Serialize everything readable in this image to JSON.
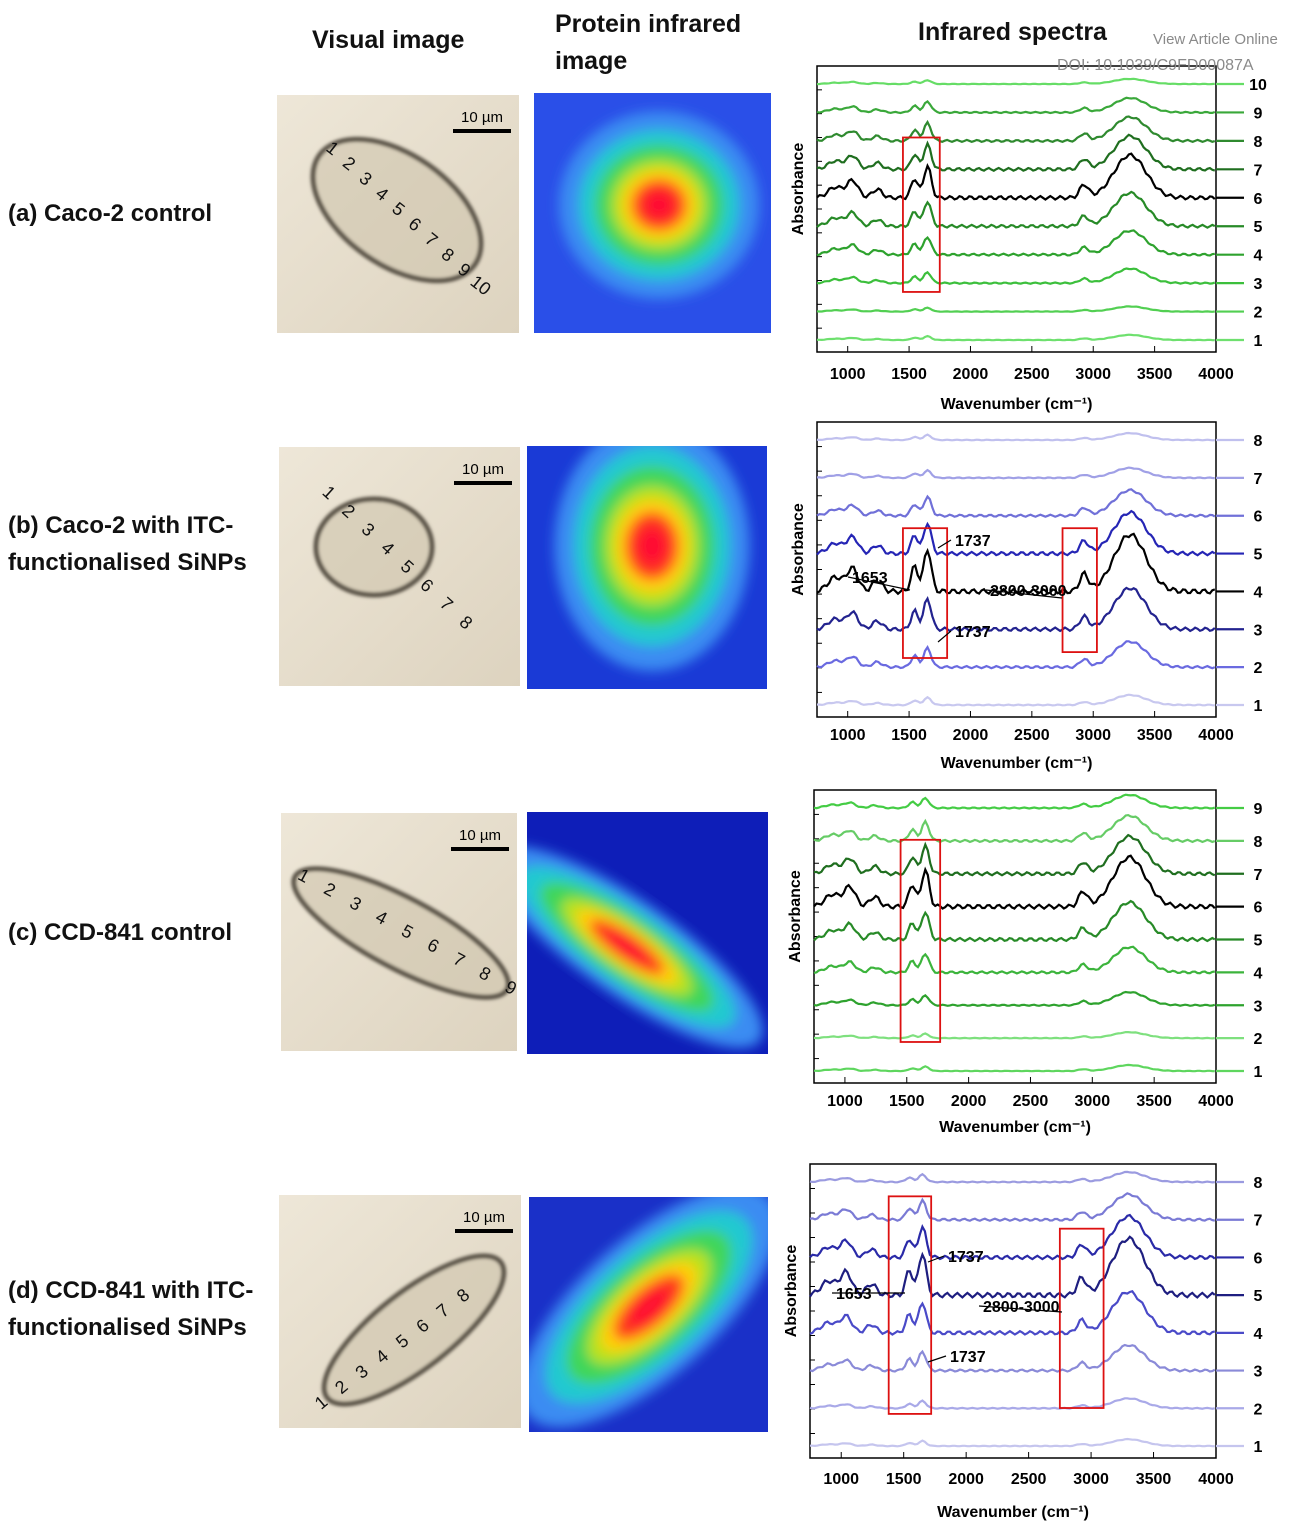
{
  "header": {
    "visual": "Visual image",
    "protein": "Protein infrared image",
    "spectra": "Infrared spectra"
  },
  "watermark": {
    "line1": "View Article Online",
    "line2": "DOI: 10.1039/C9FD00087A"
  },
  "rows": [
    {
      "label": "(a) Caco-2 control",
      "scale_bar": "10 µm",
      "cell_numbers": [
        "1",
        "2",
        "3",
        "4",
        "5",
        "6",
        "7",
        "8",
        "9",
        "10"
      ],
      "spectra": {
        "xlim": [
          750,
          4000
        ],
        "xticks": [
          1000,
          1500,
          2000,
          2500,
          3000,
          3500,
          4000
        ],
        "x_label": "Wavenumber (cm⁻¹)",
        "y_label": "Absorbance",
        "curves": [
          {
            "label": "1",
            "color": "#6ee06e"
          },
          {
            "label": "2",
            "color": "#52cf52"
          },
          {
            "label": "3",
            "color": "#3cbf3c"
          },
          {
            "label": "4",
            "color": "#2ea22e"
          },
          {
            "label": "5",
            "color": "#278a27"
          },
          {
            "label": "6",
            "color": "#000000"
          },
          {
            "label": "7",
            "color": "#1f6e1f"
          },
          {
            "label": "8",
            "color": "#2f8a2f"
          },
          {
            "label": "9",
            "color": "#3aa83a"
          },
          {
            "label": "10",
            "color": "#66dd66"
          }
        ],
        "annotations": []
      }
    },
    {
      "label": "(b) Caco-2 with ITC-functionalised SiNPs",
      "scale_bar": "10 µm",
      "cell_numbers": [
        "1",
        "2",
        "3",
        "4",
        "5",
        "6",
        "7",
        "8"
      ],
      "spectra": {
        "xlim": [
          750,
          4000
        ],
        "xticks": [
          1000,
          1500,
          2000,
          2500,
          3000,
          3500,
          4000
        ],
        "x_label": "Wavenumber (cm⁻¹)",
        "y_label": "Absorbance",
        "curves": [
          {
            "label": "1",
            "color": "#c8c8ef"
          },
          {
            "label": "2",
            "color": "#6a6ae0"
          },
          {
            "label": "3",
            "color": "#23238f"
          },
          {
            "label": "4",
            "color": "#000000"
          },
          {
            "label": "5",
            "color": "#2525b5"
          },
          {
            "label": "6",
            "color": "#7070d8"
          },
          {
            "label": "7",
            "color": "#a0a0e6"
          },
          {
            "label": "8",
            "color": "#c0c0ee"
          }
        ],
        "annotations": [
          "1737",
          "1653",
          "2800-3000",
          "1737"
        ]
      }
    },
    {
      "label": "(c) CCD-841 control",
      "scale_bar": "10 µm",
      "cell_numbers": [
        "1",
        "2",
        "3",
        "4",
        "5",
        "6",
        "7",
        "8",
        "9"
      ],
      "spectra": {
        "xlim": [
          750,
          4000
        ],
        "xticks": [
          1000,
          1500,
          2000,
          2500,
          3000,
          3500,
          4000
        ],
        "x_label": "Wavenumber (cm⁻¹)",
        "y_label": "Absorbance",
        "curves": [
          {
            "label": "1",
            "color": "#5ed65e"
          },
          {
            "label": "2",
            "color": "#7ee07e"
          },
          {
            "label": "3",
            "color": "#2ea22e"
          },
          {
            "label": "4",
            "color": "#3cb43c"
          },
          {
            "label": "5",
            "color": "#278a27"
          },
          {
            "label": "6",
            "color": "#000000"
          },
          {
            "label": "7",
            "color": "#1f6e1f"
          },
          {
            "label": "8",
            "color": "#66cc66"
          },
          {
            "label": "9",
            "color": "#44cc44"
          }
        ],
        "annotations": []
      }
    },
    {
      "label": "(d) CCD-841 with ITC-functionalised SiNPs",
      "scale_bar": "10 µm",
      "cell_numbers": [
        "1",
        "2",
        "3",
        "4",
        "5",
        "6",
        "7",
        "8"
      ],
      "spectra": {
        "xlim": [
          750,
          4000
        ],
        "xticks": [
          1000,
          1500,
          2000,
          2500,
          3000,
          3500,
          4000
        ],
        "x_label": "Wavenumber (cm⁻¹)",
        "y_label": "Absorbance",
        "curves": [
          {
            "label": "1",
            "color": "#c5c5ee"
          },
          {
            "label": "2",
            "color": "#a9a9e8"
          },
          {
            "label": "3",
            "color": "#8a8ad8"
          },
          {
            "label": "4",
            "color": "#4a4ac8"
          },
          {
            "label": "5",
            "color": "#1e1e80"
          },
          {
            "label": "6",
            "color": "#2a2aa8"
          },
          {
            "label": "7",
            "color": "#7a7ad5"
          },
          {
            "label": "8",
            "color": "#9b9be0"
          }
        ],
        "annotations": [
          "1737",
          "1653",
          "2800-3000",
          "1737"
        ]
      }
    }
  ]
}
